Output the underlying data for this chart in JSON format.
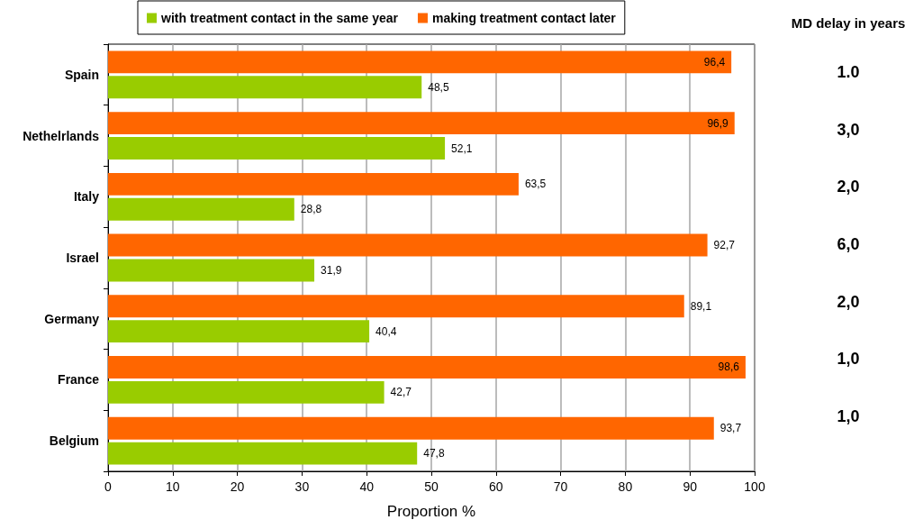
{
  "chart_data": {
    "type": "bar",
    "orientation": "horizontal",
    "categories": [
      "Spain",
      "Nethelrlands",
      "Italy",
      "Israel",
      "Germany",
      "France",
      "Belgium"
    ],
    "series": [
      {
        "name": "with treatment contact in the same year",
        "color": "#99cc00",
        "values": [
          48.5,
          52.1,
          28.8,
          31.9,
          40.4,
          42.7,
          47.8
        ],
        "value_labels": [
          "48,5",
          "52,1",
          "28,8",
          "31,9",
          "40,4",
          "42,7",
          "47,8"
        ]
      },
      {
        "name": "making treatment contact later",
        "color": "#ff6600",
        "values": [
          96.4,
          96.9,
          63.5,
          92.7,
          89.1,
          98.6,
          93.7
        ],
        "value_labels": [
          "96,4",
          "96,9",
          "63,5",
          "92,7",
          "89,1",
          "98,6",
          "93,7"
        ]
      }
    ],
    "xlabel": "Proportion %",
    "xlim": [
      0,
      100
    ],
    "xticks": [
      0,
      10,
      20,
      30,
      40,
      50,
      60,
      70,
      80,
      90,
      100
    ],
    "grid": "x",
    "legend": "top",
    "annotations": [
      "MD delay in years",
      "1.0",
      "3,0",
      "2,0",
      "6,0",
      "2,0",
      "1,0",
      "1,0"
    ]
  }
}
